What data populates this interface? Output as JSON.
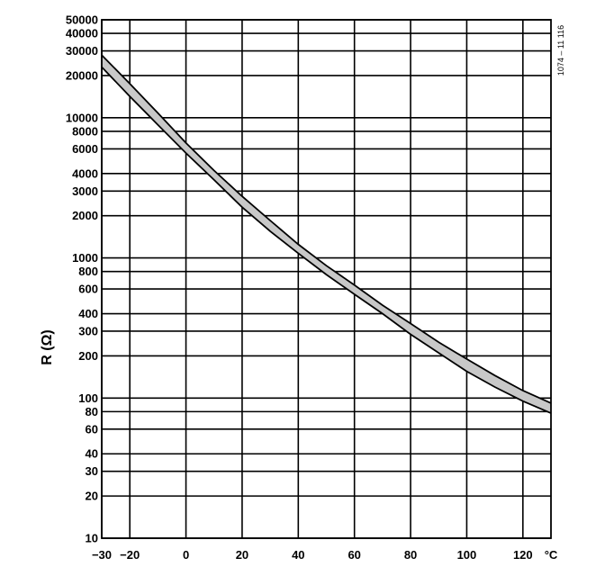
{
  "chart_data": {
    "type": "line",
    "title": "",
    "xlabel": "",
    "ylabel": "R (Ω)",
    "x_unit": "°C",
    "figure_code": "1074 – 11 116",
    "y_scale": "log",
    "grid": true,
    "xlim": [
      -30,
      130
    ],
    "ylim": [
      10,
      50000
    ],
    "x_ticks": [
      -30,
      -20,
      0,
      20,
      40,
      60,
      80,
      100,
      120
    ],
    "x_tick_labels": [
      "−30",
      "−20",
      "0",
      "20",
      "40",
      "60",
      "80",
      "100",
      "120"
    ],
    "y_ticks": [
      10,
      20,
      30,
      40,
      60,
      80,
      100,
      200,
      300,
      400,
      600,
      800,
      1000,
      2000,
      3000,
      4000,
      6000,
      8000,
      10000,
      20000,
      30000,
      40000,
      50000
    ],
    "y_tick_labels": [
      "10",
      "20",
      "30",
      "40",
      "60",
      "80",
      "100",
      "200",
      "300",
      "400",
      "600",
      "800",
      "1000",
      "2000",
      "3000",
      "4000",
      "6000",
      "8000",
      "10000",
      "20000",
      "30000",
      "40000",
      "50000"
    ],
    "band_fill": "#c8c8c8",
    "series": [
      {
        "x": [
          -30,
          -20,
          -10,
          0,
          10,
          20,
          30,
          40,
          50,
          60,
          70,
          80,
          90,
          100,
          110,
          120,
          130
        ],
        "values": [
          28000,
          17500,
          10800,
          6600,
          4200,
          2750,
          1850,
          1250,
          880,
          640,
          460,
          340,
          250,
          190,
          145,
          113,
          92
        ]
      },
      {
        "x": [
          -30,
          -20,
          -10,
          0,
          10,
          20,
          30,
          40,
          50,
          60,
          70,
          80,
          90,
          100,
          110,
          120,
          130
        ],
        "values": [
          23000,
          14200,
          8900,
          5600,
          3600,
          2300,
          1550,
          1080,
          760,
          550,
          400,
          285,
          210,
          155,
          120,
          95,
          78
        ]
      }
    ]
  }
}
